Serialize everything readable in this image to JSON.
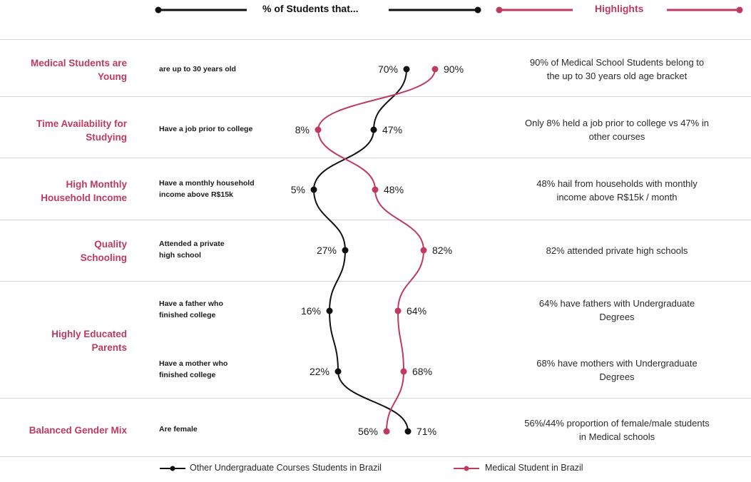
{
  "header": {
    "students_label": "% of Students that...",
    "highlights_label": "Highlights"
  },
  "colors": {
    "medical": "#c0395e",
    "other": "#111111",
    "separator": "#d4d4d4"
  },
  "rows": [
    {
      "category": "Medical Students are\nYoung",
      "description": "are up to 30 years old",
      "highlight": "90% of Medical School Students belong to\nthe up to 30 years old age bracket"
    },
    {
      "category": "Time Availability for\nStudying",
      "description": "Have a job prior to college",
      "highlight": "Only 8% held a job prior to college vs 47% in\nother courses"
    },
    {
      "category": "High Monthly\nHousehold Income",
      "description": "Have a monthly household\nincome above R$15k",
      "highlight": "48% hail from households with monthly\nincome above R$15k / month"
    },
    {
      "category": "Quality\nSchooling",
      "description": "Attended a private\nhigh school",
      "highlight": "82% attended private high schools"
    },
    {
      "category": "Highly Educated\nParents",
      "description": "Have a father who\nfinished college",
      "highlight": "64% have fathers with Undergraduate\nDegrees"
    },
    {
      "category": "",
      "description": "Have a mother who\nfinished college",
      "highlight": "68% have mothers with Undergraduate\nDegrees"
    },
    {
      "category": "Balanced Gender Mix",
      "description": "Are female",
      "highlight": "56%/44% proportion of female/male students\nin Medical schools"
    }
  ],
  "chart_data": {
    "type": "line",
    "categories": [
      "are up to 30 years old",
      "Have a job prior to college",
      "Have a monthly household income above R$15k",
      "Attended a private high school",
      "Have a father who finished college",
      "Have a mother who finished college",
      "Are female"
    ],
    "series": [
      {
        "name": "Other Undergraduate Courses Students in Brazil",
        "values": [
          70,
          47,
          5,
          27,
          16,
          22,
          71
        ],
        "labels": [
          "70%",
          "47%",
          "5%",
          "27%",
          "16%",
          "22%",
          "71%"
        ],
        "color": "#111111"
      },
      {
        "name": "Medical Student in Brazil",
        "values": [
          90,
          8,
          48,
          82,
          64,
          68,
          56
        ],
        "labels": [
          "90%",
          "8%",
          "48%",
          "82%",
          "64%",
          "68%",
          "56%"
        ],
        "color": "#c0395e"
      }
    ]
  },
  "legend": {
    "other": "Other Undergraduate Courses Students in Brazil",
    "medical": "Medical Student in Brazil"
  }
}
